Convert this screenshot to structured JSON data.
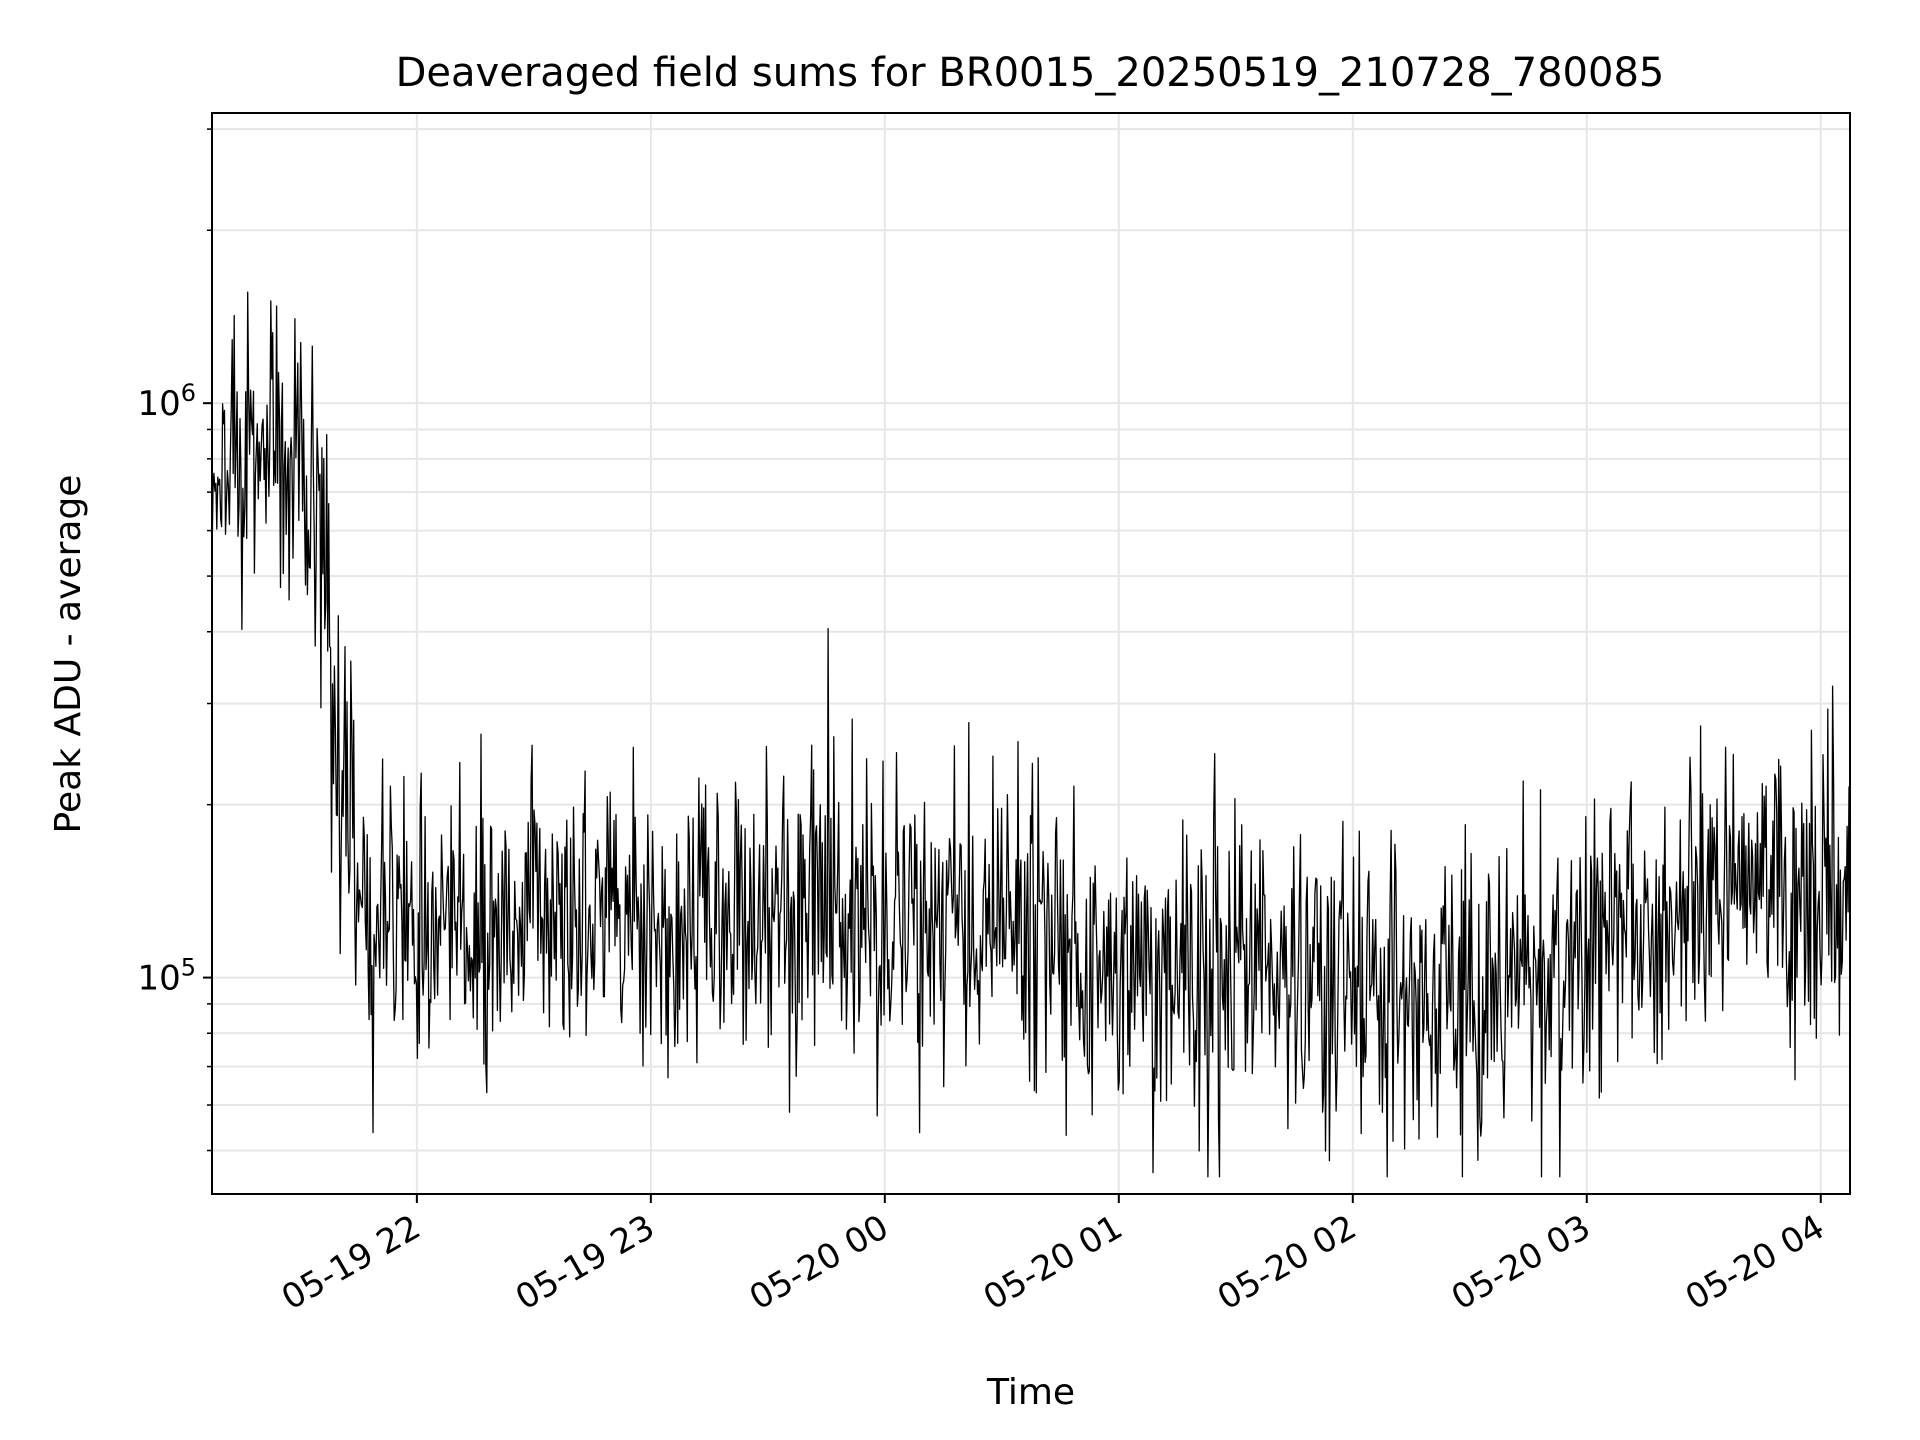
{
  "chart_data": {
    "type": "line",
    "title": "Deaveraged field sums for BR0015_20250519_210728_780085",
    "xlabel": "Time",
    "ylabel": "Peak ADU - average",
    "x_scale": "time",
    "y_scale": "log",
    "xlim": [
      "2025-05-19 21:07:28",
      "2025-05-20 04:07:30"
    ],
    "ylim": [
      42000,
      3200000
    ],
    "grid": true,
    "line_color": "#000000",
    "grid_color": "#e6e6e6",
    "xticks": [
      {
        "value": "2025-05-19 22:00",
        "label": "05-19 22"
      },
      {
        "value": "2025-05-19 23:00",
        "label": "05-19 23"
      },
      {
        "value": "2025-05-20 00:00",
        "label": "05-20 00"
      },
      {
        "value": "2025-05-20 01:00",
        "label": "05-20 01"
      },
      {
        "value": "2025-05-20 02:00",
        "label": "05-20 02"
      },
      {
        "value": "2025-05-20 03:00",
        "label": "05-20 03"
      },
      {
        "value": "2025-05-20 04:00",
        "label": "05-20 04"
      }
    ],
    "yticks": [
      {
        "value": 100000,
        "base": "10",
        "exp": "5"
      },
      {
        "value": 1000000,
        "base": "10",
        "exp": "6"
      }
    ],
    "trend": [
      {
        "x": "2025-05-19 21:07",
        "y": 750000
      },
      {
        "x": "2025-05-19 21:20",
        "y": 820000
      },
      {
        "x": "2025-05-19 21:30",
        "y": 760000
      },
      {
        "x": "2025-05-19 21:35",
        "y": 650000
      },
      {
        "x": "2025-05-19 21:40",
        "y": 220000
      },
      {
        "x": "2025-05-19 21:45",
        "y": 150000
      },
      {
        "x": "2025-05-19 22:00",
        "y": 125000
      },
      {
        "x": "2025-05-19 23:00",
        "y": 125000
      },
      {
        "x": "2025-05-20 00:00",
        "y": 135000
      },
      {
        "x": "2025-05-20 01:00",
        "y": 110000
      },
      {
        "x": "2025-05-20 02:00",
        "y": 95000
      },
      {
        "x": "2025-05-20 02:30",
        "y": 90000
      },
      {
        "x": "2025-05-20 03:00",
        "y": 110000
      },
      {
        "x": "2025-05-20 03:30",
        "y": 135000
      },
      {
        "x": "2025-05-20 04:07",
        "y": 145000
      }
    ],
    "noise_dex": 0.13,
    "n_points": 1700
  }
}
